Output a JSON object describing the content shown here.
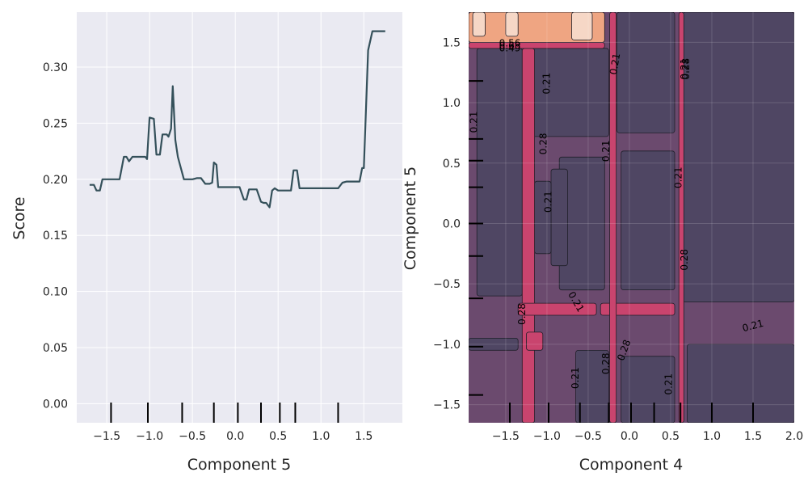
{
  "chart_data": [
    {
      "type": "line",
      "xlabel": "Component 5",
      "ylabel": "Score",
      "xlim": [
        -1.85,
        1.95
      ],
      "ylim": [
        -0.017,
        0.349
      ],
      "xticks": [
        "−1.5",
        "−1.0",
        "−0.5",
        "0.0",
        "0.5",
        "1.0",
        "1.5"
      ],
      "xtick_values": [
        -1.5,
        -1.0,
        -0.5,
        0.0,
        0.5,
        1.0,
        1.5
      ],
      "yticks": [
        "0.00",
        "0.05",
        "0.10",
        "0.15",
        "0.20",
        "0.25",
        "0.30"
      ],
      "ytick_values": [
        0.0,
        0.05,
        0.1,
        0.15,
        0.2,
        0.25,
        0.3
      ],
      "line_color": "#34505a",
      "series": [
        {
          "x": [
            -1.7,
            -1.65,
            -1.62,
            -1.58,
            -1.55,
            -1.5,
            -1.45,
            -1.4,
            -1.35,
            -1.3,
            -1.27,
            -1.24,
            -1.2,
            -1.15,
            -1.1,
            -1.05,
            -1.03,
            -1.0,
            -0.95,
            -0.92,
            -0.88,
            -0.85,
            -0.8,
            -0.78,
            -0.75,
            -0.73,
            -0.7,
            -0.67,
            -0.6,
            -0.55,
            -0.5,
            -0.45,
            -0.4,
            -0.35,
            -0.3,
            -0.27,
            -0.25,
            -0.22,
            -0.2,
            -0.15,
            -0.1,
            0.0,
            0.05,
            0.1,
            0.13,
            0.16,
            0.2,
            0.25,
            0.3,
            0.33,
            0.36,
            0.4,
            0.43,
            0.46,
            0.5,
            0.55,
            0.65,
            0.68,
            0.72,
            0.75,
            0.9,
            1.0,
            1.1,
            1.15,
            1.2,
            1.25,
            1.3,
            1.4,
            1.45,
            1.48,
            1.5,
            1.55,
            1.6,
            1.7,
            1.75
          ],
          "y": [
            0.195,
            0.195,
            0.19,
            0.19,
            0.2,
            0.2,
            0.2,
            0.2,
            0.2,
            0.22,
            0.22,
            0.216,
            0.22,
            0.22,
            0.22,
            0.22,
            0.218,
            0.255,
            0.254,
            0.222,
            0.222,
            0.24,
            0.24,
            0.238,
            0.245,
            0.283,
            0.235,
            0.22,
            0.2,
            0.2,
            0.2,
            0.201,
            0.201,
            0.196,
            0.196,
            0.197,
            0.215,
            0.213,
            0.193,
            0.193,
            0.193,
            0.193,
            0.193,
            0.182,
            0.182,
            0.191,
            0.191,
            0.191,
            0.18,
            0.179,
            0.179,
            0.175,
            0.19,
            0.192,
            0.19,
            0.19,
            0.19,
            0.208,
            0.208,
            0.192,
            0.192,
            0.192,
            0.192,
            0.192,
            0.192,
            0.197,
            0.198,
            0.198,
            0.198,
            0.21,
            0.21,
            0.315,
            0.332,
            0.332,
            0.332
          ]
        }
      ],
      "rug_x": [
        -1.45,
        -1.02,
        -0.62,
        -0.25,
        0.03,
        0.3,
        0.52,
        0.7,
        1.2
      ]
    },
    {
      "type": "contour",
      "xlabel": "Component 4",
      "ylabel": "Component 5",
      "xlim": [
        -1.95,
        2.0
      ],
      "ylim": [
        -1.65,
        1.75
      ],
      "xticks": [
        "−1.5",
        "−1.0",
        "−0.5",
        "0.0",
        "0.5",
        "1.0",
        "1.5",
        "2.0"
      ],
      "xtick_values": [
        -1.5,
        -1.0,
        -0.5,
        0.0,
        0.5,
        1.0,
        1.5,
        2.0
      ],
      "yticks": [
        "−1.5",
        "−1.0",
        "−0.5",
        "0.0",
        "0.5",
        "1.0",
        "1.5"
      ],
      "ytick_values": [
        -1.5,
        -1.0,
        -0.5,
        0.0,
        0.5,
        1.0,
        1.5
      ],
      "colors": {
        "lowest": "#4f4663",
        "low": "#6b4a6e",
        "mid": "#934f7a",
        "high": "#c9446e",
        "peach": "#efa582",
        "light": "#f6d7c6",
        "line": "#1e1e28"
      },
      "regions": [
        {
          "level": "lowest",
          "x0": 0.65,
          "x1": 2.0,
          "y0": -0.65,
          "y1": 1.75
        },
        {
          "level": "lowest",
          "x0": -1.85,
          "x1": -1.3,
          "y0": -0.6,
          "y1": 1.45
        },
        {
          "level": "lowest",
          "x0": -1.2,
          "x1": -0.25,
          "y0": 0.72,
          "y1": 1.45
        },
        {
          "level": "lowest",
          "x0": -0.15,
          "x1": 0.55,
          "y0": 0.75,
          "y1": 1.75
        },
        {
          "level": "lowest",
          "x0": -0.85,
          "x1": -0.3,
          "y0": -0.55,
          "y1": 0.55
        },
        {
          "level": "lowest",
          "x0": -0.1,
          "x1": 0.55,
          "y0": -0.55,
          "y1": 0.6
        },
        {
          "level": "lowest",
          "x0": -0.95,
          "x1": -0.75,
          "y0": -0.35,
          "y1": 0.45
        },
        {
          "level": "lowest",
          "x0": -1.15,
          "x1": -0.95,
          "y0": -0.25,
          "y1": 0.35
        },
        {
          "level": "lowest",
          "x0": -0.65,
          "x1": -0.25,
          "y0": -1.65,
          "y1": -1.05
        },
        {
          "level": "lowest",
          "x0": -0.1,
          "x1": 0.55,
          "y0": -1.65,
          "y1": -1.1
        },
        {
          "level": "lowest",
          "x0": 0.7,
          "x1": 2.0,
          "y0": -1.65,
          "y1": -1.0
        },
        {
          "level": "lowest",
          "x0": -1.95,
          "x1": -1.35,
          "y0": -1.05,
          "y1": -0.95
        },
        {
          "level": "high",
          "x0": -1.3,
          "x1": -1.15,
          "y0": -1.65,
          "y1": 1.45
        },
        {
          "level": "high",
          "x0": -1.35,
          "x1": -0.4,
          "y0": -0.76,
          "y1": -0.66
        },
        {
          "level": "high",
          "x0": -0.35,
          "x1": 0.55,
          "y0": -0.76,
          "y1": -0.66
        },
        {
          "level": "high",
          "x0": -1.25,
          "x1": -1.05,
          "y0": -1.05,
          "y1": -0.9
        },
        {
          "level": "high",
          "x0": 0.6,
          "x1": 0.66,
          "y0": -1.65,
          "y1": 1.75
        },
        {
          "level": "high",
          "x0": -0.24,
          "x1": -0.16,
          "y0": -1.65,
          "y1": 1.75
        },
        {
          "level": "high",
          "x0": -1.95,
          "x1": -0.3,
          "y0": 1.45,
          "y1": 1.5
        },
        {
          "level": "peach",
          "x0": -1.95,
          "x1": -0.3,
          "y0": 1.5,
          "y1": 1.75
        },
        {
          "level": "light",
          "x0": -1.9,
          "x1": -1.75,
          "y0": 1.55,
          "y1": 1.75
        },
        {
          "level": "light",
          "x0": -1.5,
          "x1": -1.35,
          "y0": 1.55,
          "y1": 1.75
        },
        {
          "level": "light",
          "x0": -0.7,
          "x1": -0.45,
          "y0": 1.52,
          "y1": 1.75
        }
      ],
      "labels": [
        {
          "text": "0.56",
          "x": -1.45,
          "y": 1.49,
          "rot": 0
        },
        {
          "text": "0.63",
          "x": -1.45,
          "y": 1.47,
          "rot": 0
        },
        {
          "text": "0.49",
          "x": -1.45,
          "y": 1.45,
          "rot": 0
        },
        {
          "text": "0.21",
          "x": -1.0,
          "y": 1.16,
          "rot": -90
        },
        {
          "text": "0.21",
          "x": -0.17,
          "y": 1.32,
          "rot": -80
        },
        {
          "text": "0.21",
          "x": 0.67,
          "y": 1.28,
          "rot": -90
        },
        {
          "text": "0.28",
          "x": 0.69,
          "y": 1.28,
          "rot": -90
        },
        {
          "text": "0.21",
          "x": -1.88,
          "y": 0.84,
          "rot": -90
        },
        {
          "text": "0.28",
          "x": -1.04,
          "y": 0.66,
          "rot": -90
        },
        {
          "text": "0.21",
          "x": -0.28,
          "y": 0.6,
          "rot": -90
        },
        {
          "text": "0.21",
          "x": 0.6,
          "y": 0.38,
          "rot": -90
        },
        {
          "text": "0.21",
          "x": -0.98,
          "y": 0.18,
          "rot": -90
        },
        {
          "text": "0.28",
          "x": 0.67,
          "y": -0.3,
          "rot": -90
        },
        {
          "text": "0.21",
          "x": -0.65,
          "y": -0.65,
          "rot": 60
        },
        {
          "text": "0.28",
          "x": -1.3,
          "y": -0.75,
          "rot": -90
        },
        {
          "text": "0.21",
          "x": 1.5,
          "y": -0.85,
          "rot": -15
        },
        {
          "text": "0.28",
          "x": -0.06,
          "y": -1.05,
          "rot": -70
        },
        {
          "text": "0.28",
          "x": -0.28,
          "y": -1.16,
          "rot": -90
        },
        {
          "text": "0.21",
          "x": -0.65,
          "y": -1.28,
          "rot": -90
        },
        {
          "text": "0.21",
          "x": 0.48,
          "y": -1.33,
          "rot": -90
        }
      ],
      "rug_x": [
        -1.45,
        -0.98,
        -0.6,
        -0.25,
        0.02,
        0.3,
        0.62,
        1.0,
        1.5
      ],
      "rug_y": [
        -1.42,
        -1.02,
        -0.62,
        -0.27,
        0.0,
        0.3,
        0.52,
        0.7,
        1.18
      ]
    }
  ]
}
